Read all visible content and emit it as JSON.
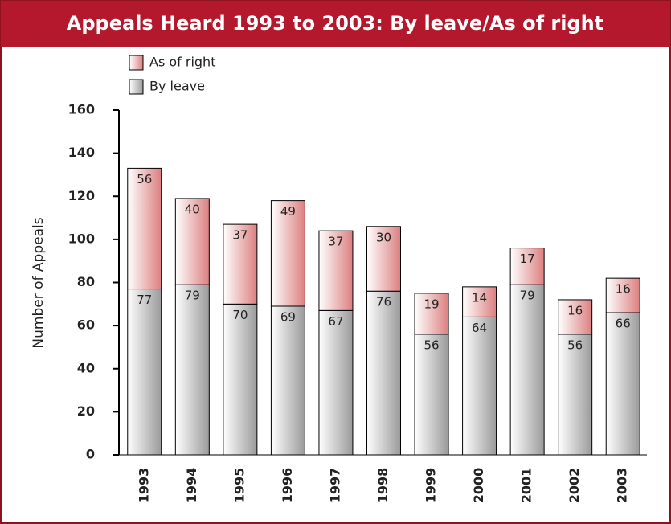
{
  "chart_data": {
    "type": "stacked_bar",
    "title": "Appeals Heard 1993 to 2003: By leave/As of right",
    "y_label": "Number of Appeals",
    "categories": [
      "1993",
      "1994",
      "1995",
      "1996",
      "1997",
      "1998",
      "1999",
      "2000",
      "2001",
      "2002",
      "2003"
    ],
    "series": [
      {
        "name": "By leave",
        "color": "#9a9a9a",
        "values": [
          77,
          79,
          70,
          69,
          67,
          76,
          56,
          64,
          79,
          56,
          66
        ]
      },
      {
        "name": "As of right",
        "color": "#dc7f80",
        "values": [
          56,
          40,
          37,
          49,
          37,
          30,
          19,
          14,
          17,
          16,
          16
        ]
      }
    ],
    "ylim": [
      0,
      160
    ],
    "yticks": [
      0,
      20,
      40,
      60,
      80,
      100,
      120,
      140,
      160
    ]
  }
}
